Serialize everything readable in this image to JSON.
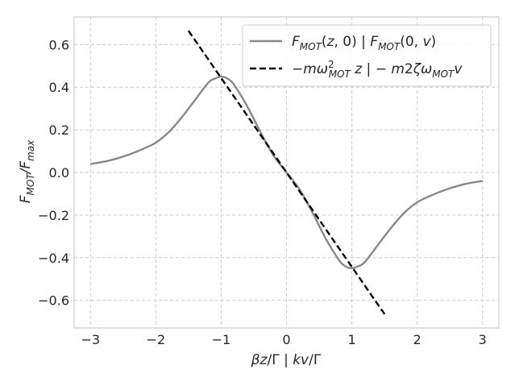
{
  "chart_data": {
    "type": "line",
    "title": "",
    "xlabel": "βz/Γ | kv/Γ",
    "ylabel": "F_MOT/F_max",
    "xlim": [
      -3.25,
      3.25
    ],
    "ylim": [
      -0.73,
      0.73
    ],
    "x_ticks": [
      -3,
      -2,
      -1,
      0,
      1,
      2,
      3
    ],
    "x_tick_labels": [
      "−3",
      "−2",
      "−1",
      "0",
      "1",
      "2",
      "3"
    ],
    "y_ticks": [
      -0.6,
      -0.4,
      -0.2,
      0.0,
      0.2,
      0.4,
      0.6
    ],
    "y_tick_labels": [
      "−0.6",
      "−0.4",
      "−0.2",
      "0.0",
      "0.2",
      "0.4",
      "0.6"
    ],
    "grid": true,
    "legend_position": "top-right",
    "series": [
      {
        "name": "F_MOT(z, 0) | F_MOT(0, v)",
        "style": "solid",
        "color": "#888888",
        "x": [
          -3.0,
          -2.8,
          -2.6,
          -2.4,
          -2.2,
          -2.0,
          -1.8,
          -1.6,
          -1.4,
          -1.2,
          -1.1,
          -1.0,
          -0.9,
          -0.8,
          -0.6,
          -0.4,
          -0.2,
          0.0,
          0.2,
          0.4,
          0.6,
          0.8,
          0.9,
          1.0,
          1.1,
          1.2,
          1.4,
          1.6,
          1.8,
          2.0,
          2.2,
          2.4,
          2.6,
          2.8,
          3.0
        ],
        "y": [
          0.04,
          0.05,
          0.065,
          0.085,
          0.11,
          0.14,
          0.19,
          0.26,
          0.34,
          0.42,
          0.44,
          0.45,
          0.44,
          0.41,
          0.31,
          0.19,
          0.08,
          0.0,
          -0.08,
          -0.19,
          -0.31,
          -0.41,
          -0.44,
          -0.45,
          -0.44,
          -0.42,
          -0.34,
          -0.26,
          -0.19,
          -0.14,
          -0.11,
          -0.085,
          -0.065,
          -0.05,
          -0.04
        ]
      },
      {
        "name": "−mω²_MOT z | −m2ζω_MOT v",
        "style": "dashed",
        "color": "#000000",
        "x": [
          -1.5,
          1.5
        ],
        "y": [
          0.665,
          -0.665
        ]
      }
    ]
  },
  "colors": {
    "frame": "#cccccc",
    "grid": "#cccccc",
    "text": "#262626"
  }
}
